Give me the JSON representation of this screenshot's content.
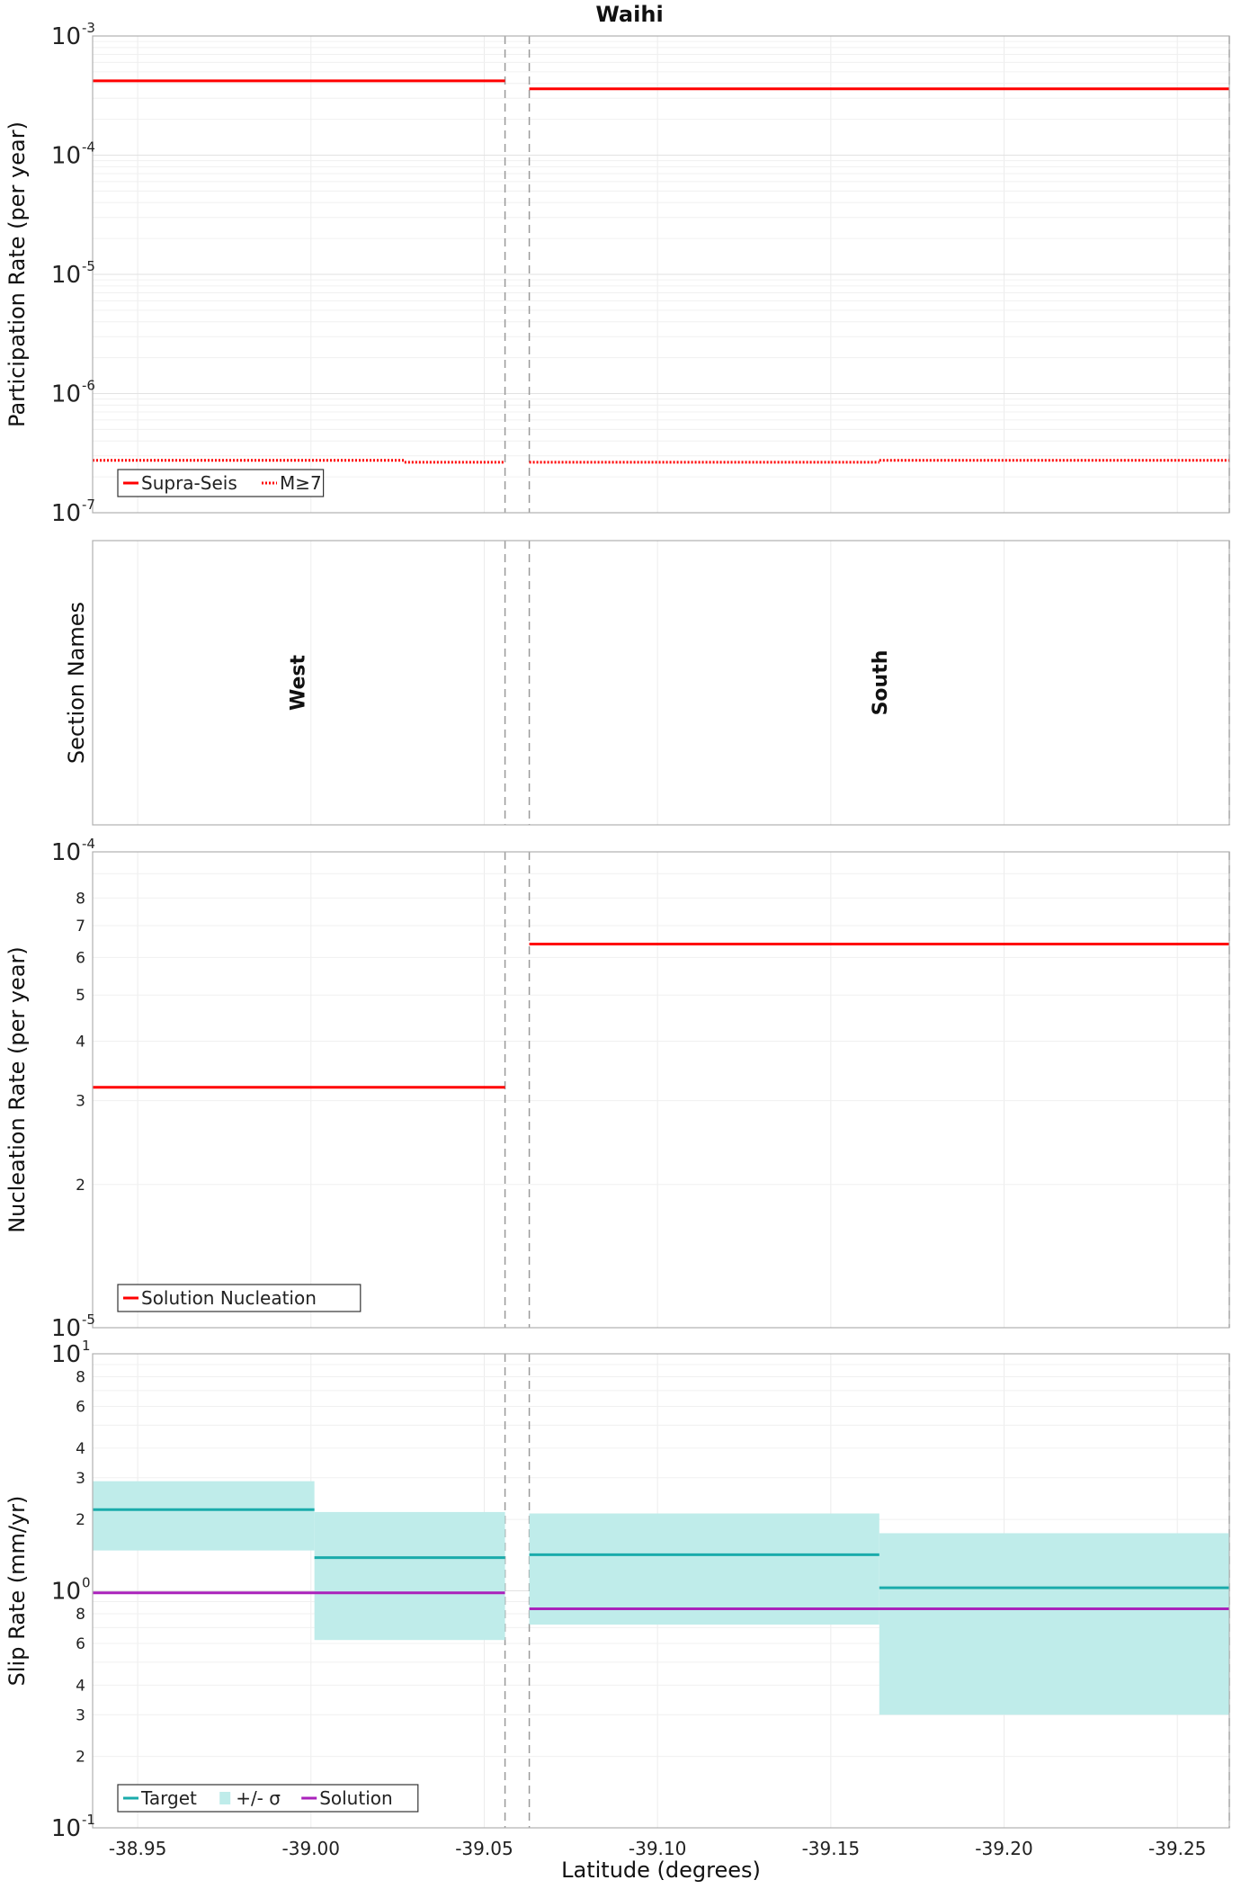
{
  "title": "Waihi",
  "xlabel": "Latitude (degrees)",
  "x_tick_labels": [
    "-38.95",
    "-39.00",
    "-39.05",
    "-39.10",
    "-39.15",
    "-39.20",
    "-39.25"
  ],
  "chart_data": [
    {
      "type": "line",
      "panel": "participation",
      "ylabel": "Participation Rate (per year)",
      "yscale": "log",
      "ylim": [
        1e-07,
        0.001
      ],
      "xlim": [
        -38.937,
        -39.265
      ],
      "grid": true,
      "legend_placement": "bottom-left",
      "series": [
        {
          "name": "Supra-Seis",
          "style": "solid",
          "color": "#ff0000",
          "segments": [
            {
              "x": [
                -38.937,
                -39.056
              ],
              "y": 0.00042
            },
            {
              "x": [
                -39.063,
                -39.265
              ],
              "y": 0.00036
            }
          ]
        },
        {
          "name": "M≥7",
          "style": "dotted",
          "color": "#ff0000",
          "segments": [
            {
              "x": [
                -38.937,
                -39.027
              ],
              "y": 2.75e-07
            },
            {
              "x": [
                -39.027,
                -39.056
              ],
              "y": 2.65e-07
            },
            {
              "x": [
                -39.063,
                -39.164
              ],
              "y": 2.65e-07
            },
            {
              "x": [
                -39.164,
                -39.265
              ],
              "y": 2.75e-07
            }
          ]
        }
      ]
    },
    {
      "type": "table",
      "panel": "sections",
      "ylabel": "Section Names",
      "sections": [
        {
          "name": "West",
          "x": -38.996
        },
        {
          "name": "South",
          "x": -39.164
        }
      ]
    },
    {
      "type": "line",
      "panel": "nucleation",
      "ylabel": "Nucleation Rate (per year)",
      "yscale": "log",
      "ylim": [
        1e-05,
        0.0001
      ],
      "xlim": [
        -38.937,
        -39.265
      ],
      "grid": true,
      "legend_placement": "bottom-left",
      "series": [
        {
          "name": "Solution Nucleation",
          "style": "solid",
          "color": "#ff0000",
          "segments": [
            {
              "x": [
                -38.937,
                -39.056
              ],
              "y": 3.2e-05
            },
            {
              "x": [
                -39.063,
                -39.265
              ],
              "y": 6.4e-05
            }
          ]
        }
      ]
    },
    {
      "type": "area",
      "panel": "slip",
      "ylabel": "Slip Rate (mm/yr)",
      "yscale": "log",
      "ylim": [
        0.1,
        10
      ],
      "xlim": [
        -38.937,
        -39.265
      ],
      "grid": true,
      "legend_placement": "bottom-left",
      "series": [
        {
          "name": "Target",
          "style": "solid",
          "color": "#1aabab",
          "segments": [
            {
              "x": [
                -38.937,
                -39.001
              ],
              "y": 2.2
            },
            {
              "x": [
                -39.001,
                -39.056
              ],
              "y": 1.38
            },
            {
              "x": [
                -39.063,
                -39.164
              ],
              "y": 1.42
            },
            {
              "x": [
                -39.164,
                -39.265
              ],
              "y": 1.03
            }
          ]
        },
        {
          "name": "+/- σ",
          "style": "band",
          "color": "#bfecea",
          "segments": [
            {
              "x": [
                -38.937,
                -39.001
              ],
              "low": 1.48,
              "high": 2.9
            },
            {
              "x": [
                -39.001,
                -39.056
              ],
              "low": 0.62,
              "high": 2.15
            },
            {
              "x": [
                -39.063,
                -39.164
              ],
              "low": 0.72,
              "high": 2.12
            },
            {
              "x": [
                -39.164,
                -39.265
              ],
              "low": 0.3,
              "high": 1.75
            }
          ]
        },
        {
          "name": "Solution",
          "style": "solid",
          "color": "#aa22bb",
          "segments": [
            {
              "x": [
                -38.937,
                -39.056
              ],
              "y": 0.98
            },
            {
              "x": [
                -39.063,
                -39.265
              ],
              "y": 0.84
            }
          ]
        }
      ]
    }
  ],
  "section_boundaries": [
    -39.056,
    -39.063,
    -39.265
  ]
}
